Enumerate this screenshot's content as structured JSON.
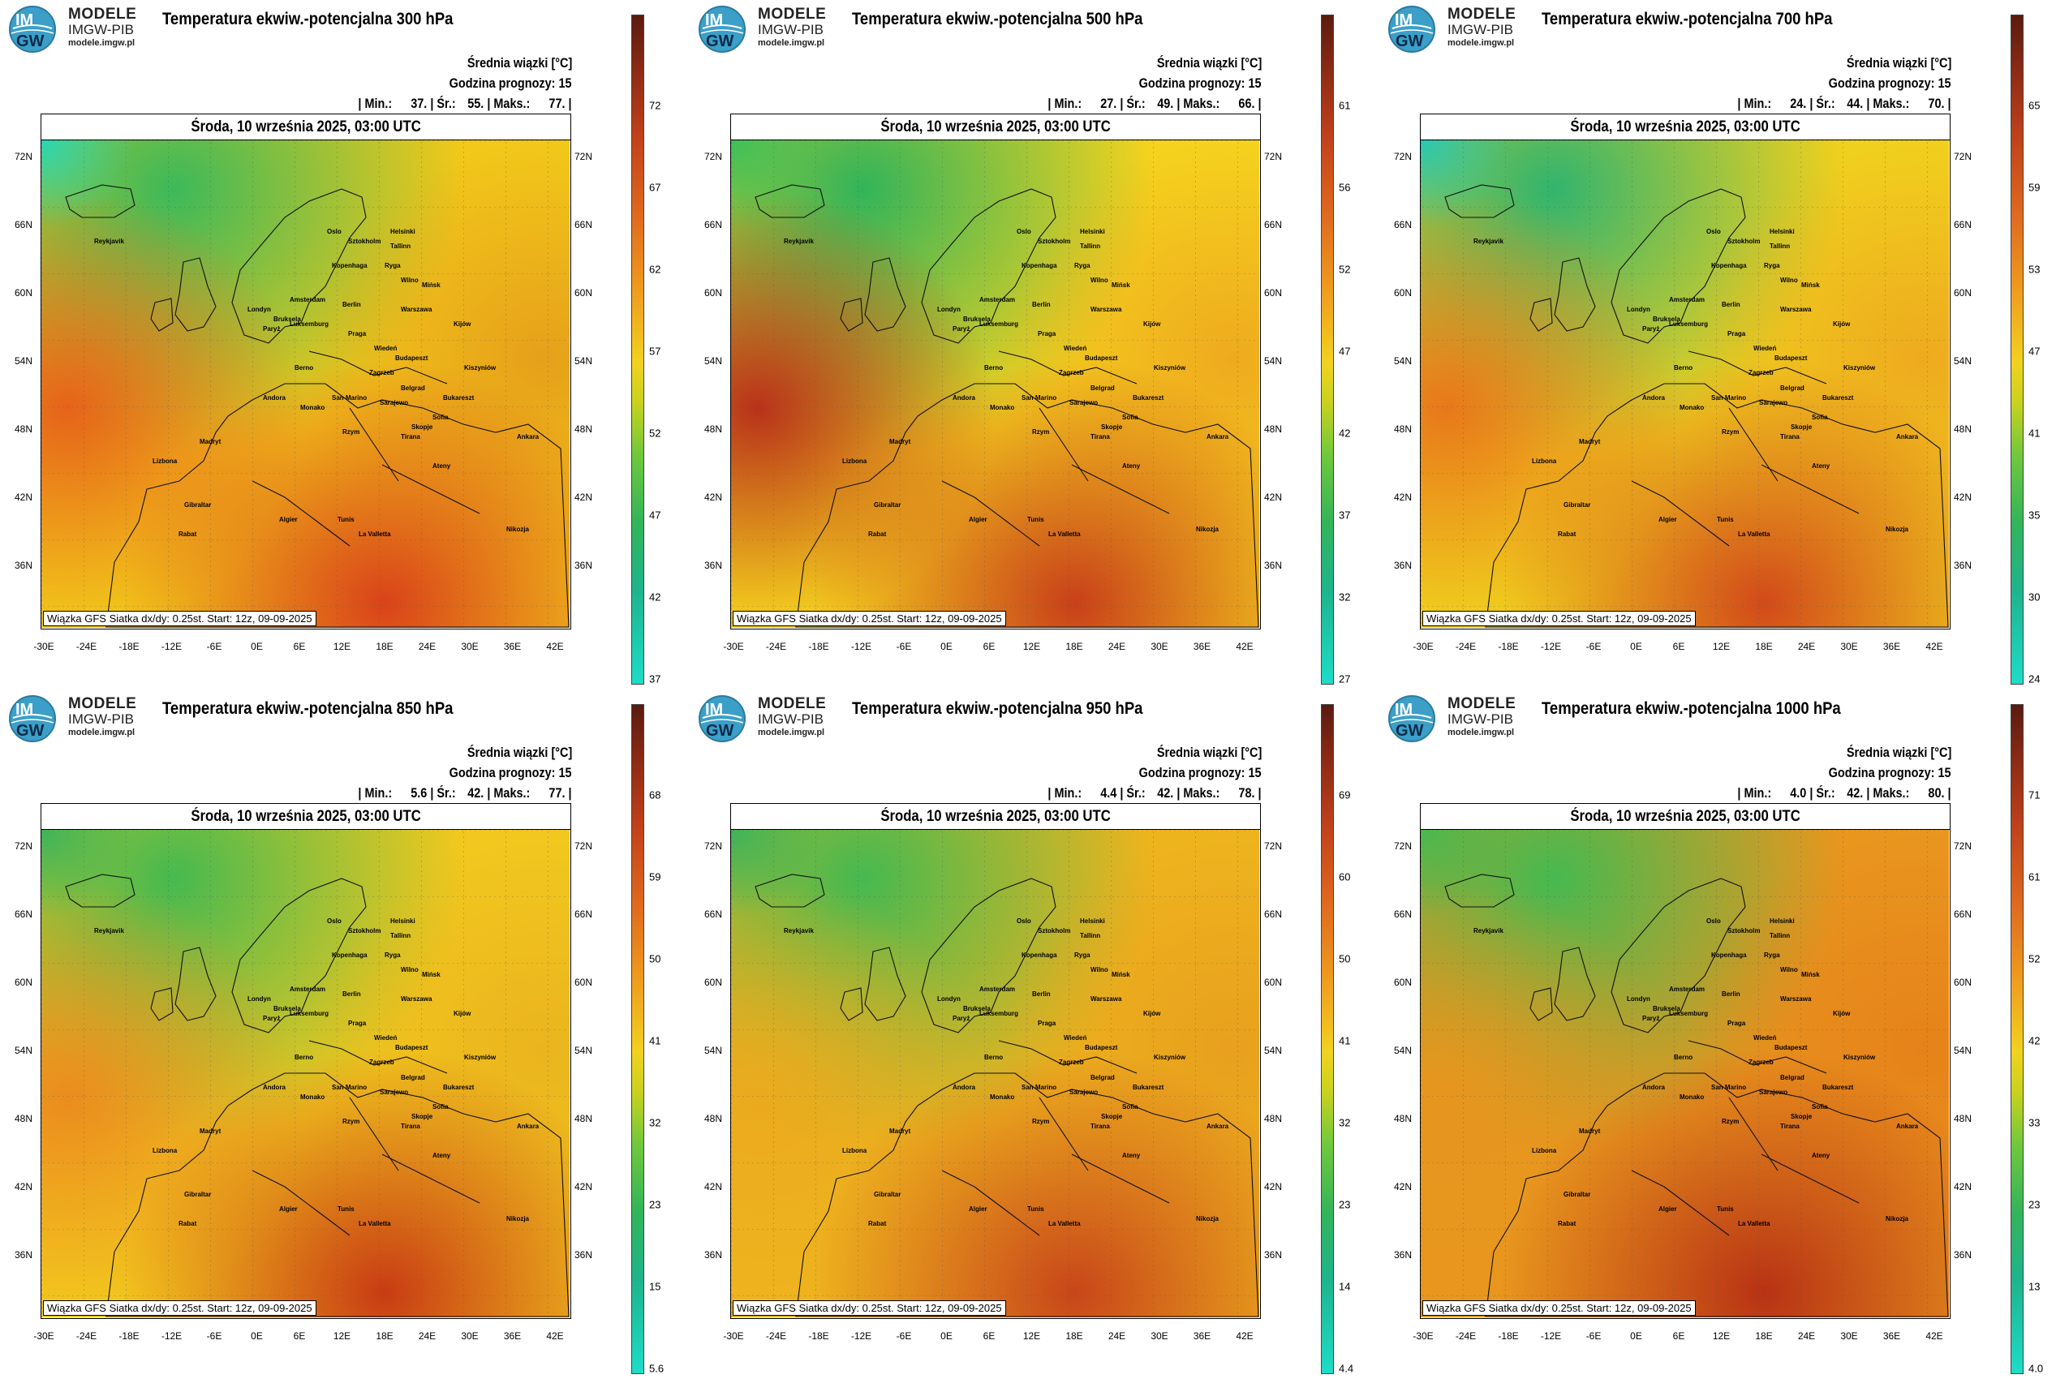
{
  "org": {
    "line1": "MODELE",
    "line2": "IMGW-PIB",
    "line3": "modele.imgw.pl",
    "badge_top": "IM",
    "badge_bottom": "GW"
  },
  "legend_title": "Średnia wiązki [°C]",
  "forecast_hour_label": "Godzina prognozy: 15",
  "date_label": "Środa, 10 września 2025, 03:00 UTC",
  "footnote": "Wiązka GFS Siatka dx/dy: 0.25st. Start: 12z, 09-09-2025",
  "stat_labels": {
    "min": "Min.:",
    "avg": "Śr.:",
    "max": "Maks.:"
  },
  "lat_labels": [
    "72N",
    "66N",
    "60N",
    "54N",
    "48N",
    "42N",
    "36N"
  ],
  "lon_labels": [
    "-30E",
    "-24E",
    "-18E",
    "-12E",
    "-6E",
    "0E",
    "6E",
    "12E",
    "18E",
    "24E",
    "30E",
    "36E",
    "42E"
  ],
  "cities": [
    "Oslo",
    "Sztokholm",
    "Helsinki",
    "Tallinn",
    "Ryga",
    "Wilno",
    "Mińsk",
    "Kijów",
    "Kopenhaga",
    "Amsterdam",
    "Berlin",
    "Warszawa",
    "Londyn",
    "Bruksela",
    "Paryż",
    "Luksemburg",
    "Praga",
    "Wiedeń",
    "Budapeszt",
    "Berno",
    "Zagrzeb",
    "Kiszyniów",
    "Belgrad",
    "Bukareszt",
    "Sarajewo",
    "Sofia",
    "Skopje",
    "Andora",
    "San Marino",
    "Monako",
    "Rzym",
    "Tirana",
    "Ateny",
    "Ankara",
    "Madryt",
    "Lizbona",
    "Gibraltar",
    "Algier",
    "Tunis",
    "Rabat",
    "La Valletta",
    "Nikozja",
    "Reykjavik"
  ],
  "panels": [
    {
      "title": "Temperatura ekwiw.-potencjalna 300 hPa",
      "min": "37.",
      "avg": "55.",
      "max": "77.",
      "ticks": [
        "72",
        "67",
        "62",
        "57",
        "52",
        "47",
        "42",
        "37"
      ],
      "colorbar_range": [
        37,
        77
      ],
      "colors": {
        "west": "#e6631a",
        "north": "#3cb95a",
        "center": "#f2c81a",
        "south": "#d9431a",
        "east": "#e6a01a",
        "corner_nw": "#28d7b4"
      }
    },
    {
      "title": "Temperatura ekwiw.-potencjalna 500 hPa",
      "min": "27.",
      "avg": "49.",
      "max": "66.",
      "ticks": [
        "61",
        "56",
        "52",
        "47",
        "42",
        "37",
        "32",
        "27"
      ],
      "colorbar_range": [
        27,
        66
      ],
      "colors": {
        "west": "#b8321a",
        "north": "#32b45a",
        "center": "#f5d21e",
        "south": "#c8401a",
        "east": "#eeaa1e",
        "corner_nw": "#3cc05a"
      }
    },
    {
      "title": "Temperatura ekwiw.-potencjalna 700 hPa",
      "min": "24.",
      "avg": "44.",
      "max": "70.",
      "ticks": [
        "65",
        "59",
        "53",
        "47",
        "41",
        "35",
        "30",
        "24"
      ],
      "colorbar_range": [
        24,
        70
      ],
      "colors": {
        "west": "#e8781a",
        "north": "#32b46e",
        "center": "#f0d01e",
        "south": "#d24a1a",
        "east": "#eeaa1e",
        "corner_nw": "#28c8b4"
      }
    },
    {
      "title": "Temperatura ekwiw.-potencjalna 850 hPa",
      "min": "5.6",
      "avg": "42.",
      "max": "77.",
      "ticks": [
        "68",
        "59",
        "50",
        "41",
        "32",
        "23",
        "15",
        "5.6"
      ],
      "colorbar_range": [
        5.6,
        77
      ],
      "colors": {
        "west": "#eb8c1e",
        "north": "#46b950",
        "center": "#f2c81e",
        "south": "#c83c14",
        "east": "#eab41e",
        "corner_nw": "#3cb45a"
      }
    },
    {
      "title": "Temperatura ekwiw.-potencjalna 950 hPa",
      "min": "4.4",
      "avg": "42.",
      "max": "78.",
      "ticks": [
        "69",
        "60",
        "50",
        "41",
        "32",
        "23",
        "14",
        "4.4"
      ],
      "colorbar_range": [
        4.4,
        78
      ],
      "colors": {
        "west": "#ebaa1e",
        "north": "#46b950",
        "center": "#eeb41e",
        "south": "#c8461a",
        "east": "#e8a01e",
        "corner_nw": "#3cb45a"
      }
    },
    {
      "title": "Temperatura ekwiw.-potencjalna 1000 hPa",
      "min": "4.0",
      "avg": "42.",
      "max": "80.",
      "ticks": [
        "71",
        "61",
        "52",
        "42",
        "33",
        "23",
        "13",
        "4.0"
      ],
      "colorbar_range": [
        4,
        80
      ],
      "colors": {
        "west": "#e6961e",
        "north": "#46b950",
        "center": "#e8961e",
        "south": "#b83214",
        "east": "#e6821a",
        "corner_nw": "#46b950"
      }
    }
  ]
}
